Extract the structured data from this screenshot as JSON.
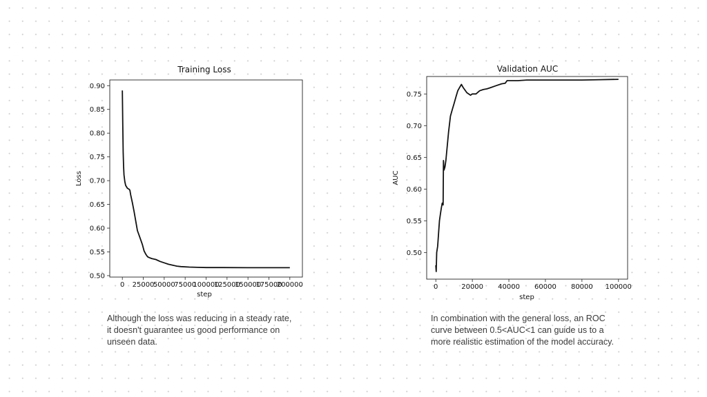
{
  "chart_data": [
    {
      "type": "line",
      "title": "Training Loss",
      "xlabel": "step",
      "ylabel": "Loss",
      "xlim": [
        -15000,
        215000
      ],
      "ylim": [
        0.497,
        0.912
      ],
      "x_ticks": [
        0,
        25000,
        50000,
        75000,
        100000,
        125000,
        150000,
        175000,
        200000
      ],
      "x_tick_labels": [
        "0",
        "25000",
        "50000",
        "75000",
        "100000",
        "125000",
        "150000",
        "175000",
        "200000"
      ],
      "y_ticks": [
        0.5,
        0.55,
        0.6,
        0.65,
        0.7,
        0.75,
        0.8,
        0.85,
        0.9
      ],
      "y_tick_labels": [
        "0.50",
        "0.55",
        "0.60",
        "0.65",
        "0.70",
        "0.75",
        "0.80",
        "0.85",
        "0.90"
      ],
      "grid": false,
      "series": [
        {
          "color": "#111111",
          "x": [
            0,
            500,
            1000,
            1500,
            2000,
            3000,
            4000,
            6000,
            8000,
            9000,
            10000,
            12000,
            14000,
            16000,
            18000,
            20000,
            22000,
            24000,
            26000,
            28000,
            30000,
            32000,
            35000,
            40000,
            45000,
            50000,
            55000,
            60000,
            65000,
            70000,
            80000,
            90000,
            100000,
            120000,
            150000,
            175000,
            200000
          ],
          "y": [
            0.89,
            0.82,
            0.76,
            0.73,
            0.712,
            0.698,
            0.69,
            0.684,
            0.682,
            0.68,
            0.67,
            0.653,
            0.635,
            0.615,
            0.595,
            0.585,
            0.575,
            0.565,
            0.552,
            0.545,
            0.54,
            0.538,
            0.536,
            0.534,
            0.53,
            0.527,
            0.524,
            0.522,
            0.52,
            0.519,
            0.518,
            0.5175,
            0.517,
            0.517,
            0.5168,
            0.5168,
            0.5168
          ]
        }
      ]
    },
    {
      "type": "line",
      "title": "Validation AUC",
      "xlabel": "step",
      "ylabel": "AUC",
      "xlim": [
        -5000,
        105000
      ],
      "ylim": [
        0.458,
        0.7775
      ],
      "x_ticks": [
        0,
        20000,
        40000,
        60000,
        80000,
        100000
      ],
      "x_tick_labels": [
        "0",
        "20000",
        "40000",
        "60000",
        "80000",
        "100000"
      ],
      "y_ticks": [
        0.5,
        0.55,
        0.6,
        0.65,
        0.7,
        0.75
      ],
      "y_tick_labels": [
        "0.50",
        "0.55",
        "0.60",
        "0.65",
        "0.70",
        "0.75"
      ],
      "grid": false,
      "series": [
        {
          "color": "#111111",
          "x": [
            0,
            200,
            500,
            1000,
            1500,
            2000,
            2500,
            3000,
            3500,
            4000,
            4200,
            4500,
            5000,
            5500,
            6000,
            7000,
            8000,
            9000,
            10000,
            11000,
            12000,
            13000,
            14000,
            15000,
            17000,
            19000,
            20000,
            22000,
            24000,
            26000,
            28000,
            30000,
            33000,
            36000,
            38000,
            39000,
            40000,
            45000,
            50000,
            55000,
            60000,
            70000,
            80000,
            90000,
            100000
          ],
          "y": [
            0.48,
            0.47,
            0.5,
            0.51,
            0.53,
            0.55,
            0.56,
            0.57,
            0.578,
            0.575,
            0.645,
            0.63,
            0.635,
            0.645,
            0.66,
            0.69,
            0.715,
            0.725,
            0.735,
            0.745,
            0.755,
            0.76,
            0.765,
            0.76,
            0.752,
            0.748,
            0.75,
            0.75,
            0.755,
            0.757,
            0.758,
            0.76,
            0.763,
            0.766,
            0.767,
            0.771,
            0.771,
            0.771,
            0.772,
            0.772,
            0.772,
            0.772,
            0.772,
            0.7725,
            0.773
          ]
        }
      ]
    }
  ],
  "captions": {
    "left": [
      "Although the loss was reducing in a steady rate,",
      "it doesn't guarantee us good performance on",
      "unseen data."
    ],
    "right": [
      "In combination with the general loss, an ROC",
      "curve between 0.5<AUC<1 can guide us to a",
      "more realistic estimation of the model accuracy."
    ]
  }
}
